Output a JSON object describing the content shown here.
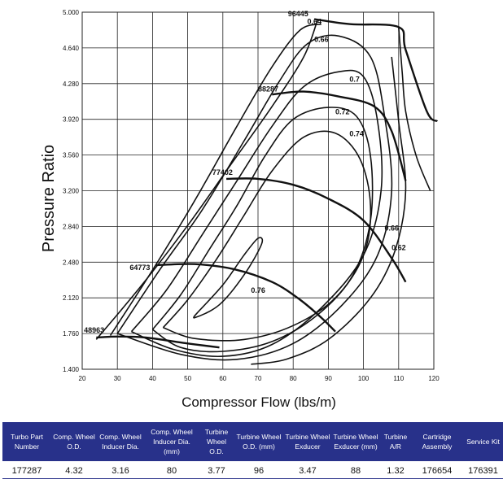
{
  "chart_data": {
    "type": "line",
    "xlabel": "Compressor Flow (lbs/m)",
    "ylabel": "Pressure Ratio",
    "xlim": [
      20,
      120
    ],
    "ylim": [
      1.4,
      5.0
    ],
    "x_ticks": [
      "20",
      "30",
      "40",
      "50",
      "60",
      "70",
      "80",
      "90",
      "100",
      "110",
      "120"
    ],
    "y_ticks": [
      "1.400",
      "1.760",
      "2.120",
      "2.480",
      "2.840",
      "3.200",
      "3.560",
      "3.920",
      "4.280",
      "4.640",
      "5.000"
    ],
    "grid": true,
    "surge_line": [
      [
        24,
        1.7
      ],
      [
        37,
        2.25
      ],
      [
        50,
        2.85
      ],
      [
        62,
        3.45
      ],
      [
        74,
        4.05
      ],
      [
        83,
        4.55
      ],
      [
        87,
        4.93
      ]
    ],
    "speed_lines": [
      {
        "name": "48963",
        "points": [
          [
            24,
            1.72
          ],
          [
            30,
            1.73
          ],
          [
            38,
            1.72
          ],
          [
            50,
            1.66
          ],
          [
            59,
            1.62
          ]
        ]
      },
      {
        "name": "64773",
        "points": [
          [
            41,
            2.45
          ],
          [
            52,
            2.46
          ],
          [
            63,
            2.41
          ],
          [
            74,
            2.28
          ],
          [
            82,
            2.1
          ],
          [
            88,
            1.92
          ],
          [
            92,
            1.78
          ]
        ]
      },
      {
        "name": "77402",
        "points": [
          [
            61,
            3.32
          ],
          [
            70,
            3.32
          ],
          [
            80,
            3.26
          ],
          [
            90,
            3.12
          ],
          [
            100,
            2.9
          ],
          [
            108,
            2.52
          ],
          [
            112,
            2.28
          ]
        ]
      },
      {
        "name": "88287",
        "points": [
          [
            74,
            4.17
          ],
          [
            83,
            4.2
          ],
          [
            93,
            4.15
          ],
          [
            103,
            4.05
          ],
          [
            108,
            3.8
          ],
          [
            112,
            3.3
          ]
        ]
      },
      {
        "name": "96445",
        "points": [
          [
            86,
            4.93
          ],
          [
            96,
            4.88
          ],
          [
            110,
            4.85
          ],
          [
            112,
            4.62
          ],
          [
            118,
            4.0
          ],
          [
            121,
            3.9
          ]
        ]
      }
    ],
    "choke_line": [
      [
        110,
        4.85
      ],
      [
        111,
        4.4
      ],
      [
        112,
        4.0
      ],
      [
        115,
        3.55
      ],
      [
        119,
        3.2
      ]
    ],
    "efficiency_islands": [
      {
        "name": "0.76",
        "points": [
          [
            53,
            1.98
          ],
          [
            60,
            2.25
          ],
          [
            66,
            2.55
          ],
          [
            70,
            2.72
          ],
          [
            71,
            2.66
          ],
          [
            66,
            2.35
          ],
          [
            59,
            2.05
          ],
          [
            52,
            1.92
          ],
          [
            53,
            1.98
          ]
        ]
      },
      {
        "name": "0.74",
        "points": [
          [
            43,
            1.82
          ],
          [
            50,
            2.1
          ],
          [
            58,
            2.5
          ],
          [
            66,
            2.95
          ],
          [
            74,
            3.4
          ],
          [
            83,
            3.74
          ],
          [
            92,
            3.78
          ],
          [
            99,
            3.52
          ],
          [
            102,
            3.05
          ],
          [
            100,
            2.55
          ],
          [
            92,
            2.12
          ],
          [
            80,
            1.84
          ],
          [
            66,
            1.7
          ],
          [
            52,
            1.71
          ],
          [
            43,
            1.82
          ]
        ]
      },
      {
        "name": "0.72",
        "points": [
          [
            40,
            1.8
          ],
          [
            48,
            2.15
          ],
          [
            56,
            2.6
          ],
          [
            64,
            3.05
          ],
          [
            72,
            3.55
          ],
          [
            80,
            3.92
          ],
          [
            90,
            4.04
          ],
          [
            98,
            3.95
          ],
          [
            102,
            3.55
          ],
          [
            102,
            2.9
          ],
          [
            97,
            2.35
          ],
          [
            87,
            1.95
          ],
          [
            74,
            1.68
          ],
          [
            60,
            1.58
          ],
          [
            48,
            1.62
          ],
          [
            40,
            1.8
          ]
        ]
      },
      {
        "name": "0.7",
        "points": [
          [
            34,
            1.78
          ],
          [
            44,
            2.2
          ],
          [
            54,
            2.75
          ],
          [
            64,
            3.3
          ],
          [
            74,
            3.85
          ],
          [
            83,
            4.25
          ],
          [
            93,
            4.4
          ],
          [
            100,
            4.35
          ],
          [
            104,
            3.9
          ],
          [
            105,
            3.2
          ],
          [
            100,
            2.55
          ],
          [
            88,
            2.02
          ],
          [
            74,
            1.65
          ],
          [
            60,
            1.53
          ],
          [
            46,
            1.6
          ],
          [
            34,
            1.78
          ]
        ]
      },
      {
        "name": "0.66",
        "points": [
          [
            30,
            1.76
          ],
          [
            42,
            2.4
          ],
          [
            54,
            3.0
          ],
          [
            66,
            3.7
          ],
          [
            76,
            4.3
          ],
          [
            84,
            4.68
          ],
          [
            93,
            4.76
          ],
          [
            102,
            4.55
          ],
          [
            106,
            3.95
          ],
          [
            108,
            3.2
          ],
          [
            104,
            2.55
          ],
          [
            94,
            2.05
          ],
          [
            80,
            1.66
          ],
          [
            64,
            1.5
          ],
          [
            48,
            1.55
          ],
          [
            30,
            1.76
          ]
        ]
      },
      {
        "name": "0.64",
        "points": [
          [
            28,
            1.74
          ],
          [
            40,
            2.4
          ],
          [
            52,
            3.1
          ],
          [
            64,
            3.85
          ],
          [
            74,
            4.45
          ],
          [
            82,
            4.82
          ],
          [
            88,
            4.88
          ]
        ]
      },
      {
        "name": "0.62",
        "points": [
          [
            108,
            4.55
          ],
          [
            110,
            3.9
          ],
          [
            112,
            3.2
          ],
          [
            109,
            2.6
          ],
          [
            102,
            2.12
          ],
          [
            90,
            1.7
          ],
          [
            78,
            1.5
          ],
          [
            68,
            1.45
          ]
        ]
      }
    ],
    "label_positions": {
      "48963": [
        20.5,
        1.77
      ],
      "64773": [
        33.5,
        2.4
      ],
      "77402": [
        57,
        3.36
      ],
      "88287": [
        70,
        4.2
      ],
      "96445": [
        78.5,
        4.96
      ],
      "0.76": [
        68,
        2.17
      ],
      "0.74": [
        96,
        3.75
      ],
      "0.72": [
        92,
        3.97
      ],
      "0.7": [
        96,
        4.3
      ],
      "0.66a": [
        86,
        4.7
      ],
      "0.64": [
        84,
        4.88
      ],
      "0.66b": [
        106,
        2.8
      ],
      "0.62": [
        108,
        2.6
      ]
    }
  },
  "table": {
    "headers": [
      "Turbo Part Number",
      "Comp. Wheel O.D.",
      "Comp. Wheel Inducer Dia.",
      "Comp. Wheel Inducer Dia. (mm)",
      "Turbine Wheel O.D.",
      "Turbine Wheel O.D. (mm)",
      "Turbine Wheel Exducer",
      "Turbine Wheel Exducer (mm)",
      "Turbine A/R",
      "Cartridge Assembly",
      "Service Kit"
    ],
    "row": [
      "177287",
      "4.32",
      "3.16",
      "80",
      "3.77",
      "96",
      "3.47",
      "88",
      "1.32",
      "176654",
      "176391"
    ]
  },
  "colors": {
    "table_header_bg": "#28318a",
    "line": "#111111",
    "grid": "#222222"
  }
}
